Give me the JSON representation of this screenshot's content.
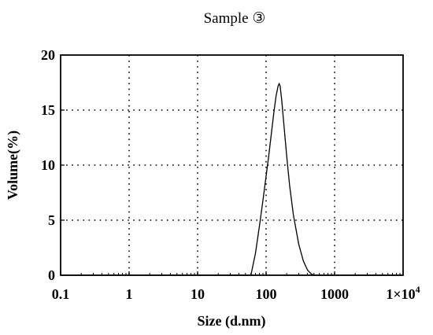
{
  "chart_data": {
    "type": "line",
    "title": "Sample ③",
    "xlabel": "Size (d.nm)",
    "ylabel": "Volume(%)",
    "x_scale": "log",
    "xlim": [
      0.1,
      10000
    ],
    "ylim": [
      0,
      20
    ],
    "x_ticks": [
      {
        "value": 0.1,
        "label": "0.1"
      },
      {
        "value": 1,
        "label": "1"
      },
      {
        "value": 10,
        "label": "10"
      },
      {
        "value": 100,
        "label": "100"
      },
      {
        "value": 1000,
        "label": "1000"
      },
      {
        "value": 10000,
        "label": "1×10",
        "sup": "4"
      }
    ],
    "y_ticks": [
      {
        "value": 0,
        "label": "0"
      },
      {
        "value": 5,
        "label": "5"
      },
      {
        "value": 10,
        "label": "10"
      },
      {
        "value": 15,
        "label": "15"
      },
      {
        "value": 20,
        "label": "20"
      }
    ],
    "grid": true,
    "legend": "none",
    "series": [
      {
        "color": "#000000",
        "points": [
          [
            0.1,
            0
          ],
          [
            60,
            0
          ],
          [
            70,
            2.0
          ],
          [
            80,
            4.5
          ],
          [
            90,
            6.8
          ],
          [
            100,
            9.0
          ],
          [
            110,
            11.0
          ],
          [
            120,
            13.0
          ],
          [
            130,
            14.8
          ],
          [
            140,
            16.3
          ],
          [
            150,
            17.2
          ],
          [
            155,
            17.4
          ],
          [
            160,
            17.2
          ],
          [
            170,
            15.8
          ],
          [
            180,
            14.0
          ],
          [
            200,
            10.8
          ],
          [
            220,
            8.2
          ],
          [
            250,
            5.5
          ],
          [
            300,
            2.8
          ],
          [
            350,
            1.3
          ],
          [
            400,
            0.5
          ],
          [
            450,
            0.15
          ],
          [
            500,
            0
          ],
          [
            10000,
            0
          ]
        ]
      }
    ]
  }
}
